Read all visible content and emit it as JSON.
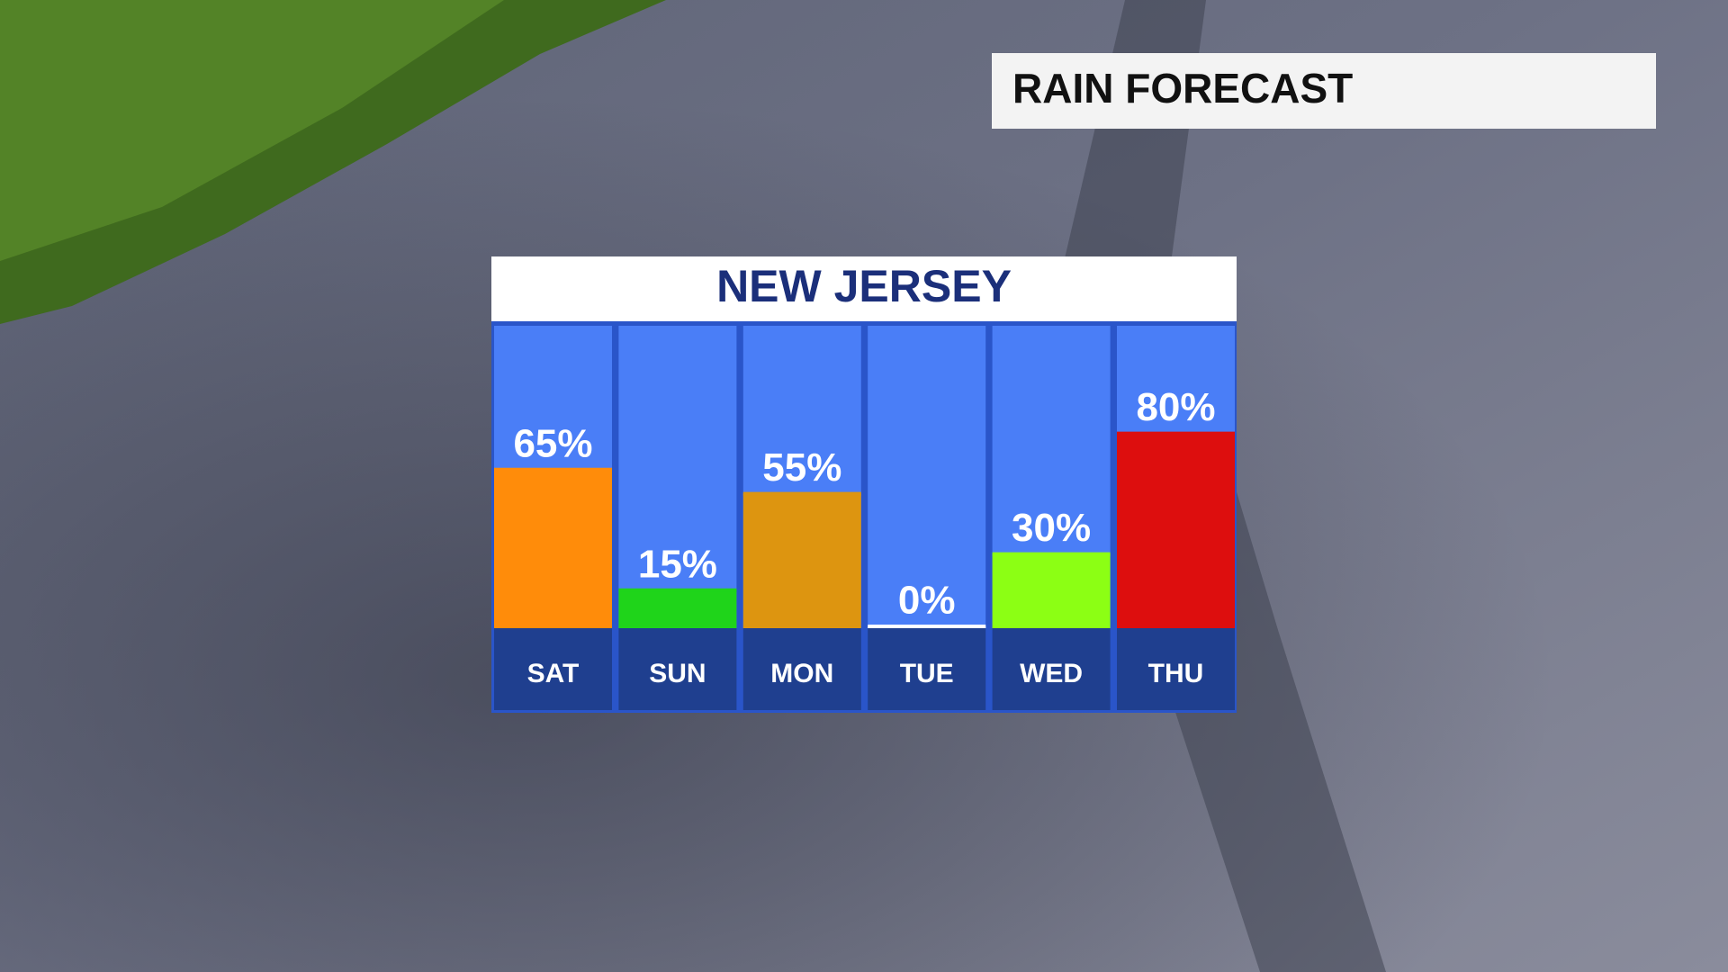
{
  "header": {
    "title": "RAIN FORECAST"
  },
  "chart_data": {
    "type": "bar",
    "title": "NEW JERSEY",
    "categories": [
      "SAT",
      "SUN",
      "MON",
      "TUE",
      "WED",
      "THU"
    ],
    "values": [
      65,
      15,
      55,
      0,
      30,
      80
    ],
    "value_labels": [
      "65%",
      "15%",
      "55%",
      "0%",
      "30%",
      "80%"
    ],
    "colors": [
      "#ff8c0a",
      "#1fd41a",
      "#dd9510",
      "#ffffff",
      "#8cff14",
      "#dd0e0e"
    ],
    "ylim": [
      0,
      100
    ]
  }
}
